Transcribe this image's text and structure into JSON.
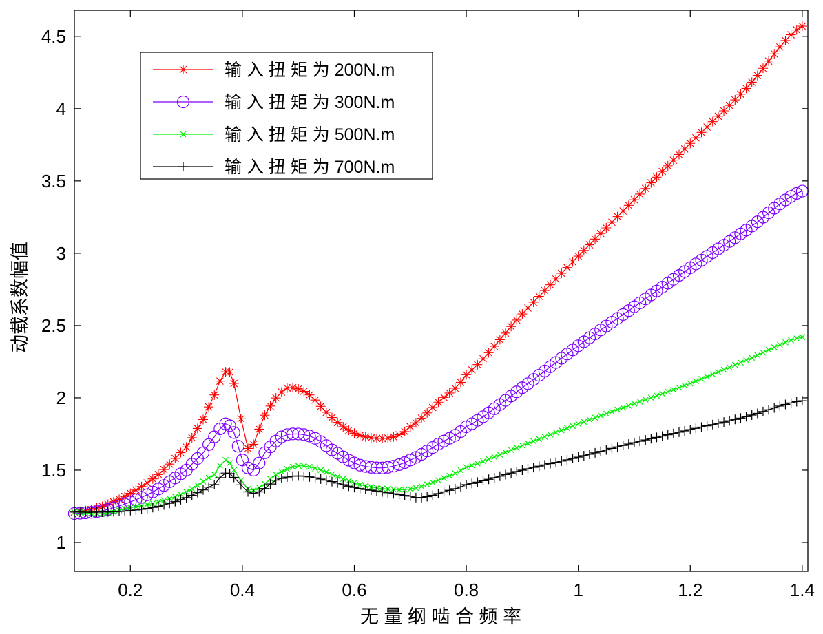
{
  "chart_data": {
    "type": "line",
    "title": "",
    "xlabel": "无 量 纲 啮 合 频 率",
    "ylabel": "动载系数幅值",
    "xlim": [
      0.1,
      1.41
    ],
    "ylim": [
      0.8,
      4.68
    ],
    "xticks": [
      0.2,
      0.4,
      0.6,
      0.8,
      1,
      1.2,
      1.4
    ],
    "xtick_labels": [
      "0.2",
      "0.4",
      "0.6",
      "0.8",
      "1",
      "1.2",
      "1.4"
    ],
    "yticks": [
      1,
      1.5,
      2,
      2.5,
      3,
      3.5,
      4,
      4.5
    ],
    "ytick_labels": [
      "1",
      "1.5",
      "2",
      "2.5",
      "3",
      "3.5",
      "4",
      "4.5"
    ],
    "grid": false,
    "legend_position": "top-left",
    "series": [
      {
        "name": "输 入 扭 矩 为 200N.m",
        "color": "#ff0000",
        "marker": "asterisk",
        "points": [
          [
            0.1,
            1.21
          ],
          [
            0.15,
            1.25
          ],
          [
            0.2,
            1.34
          ],
          [
            0.25,
            1.47
          ],
          [
            0.3,
            1.66
          ],
          [
            0.33,
            1.85
          ],
          [
            0.35,
            2.02
          ],
          [
            0.37,
            2.18
          ],
          [
            0.385,
            2.1
          ],
          [
            0.41,
            1.65
          ],
          [
            0.44,
            1.88
          ],
          [
            0.47,
            2.04
          ],
          [
            0.49,
            2.07
          ],
          [
            0.52,
            2.02
          ],
          [
            0.55,
            1.9
          ],
          [
            0.58,
            1.8
          ],
          [
            0.61,
            1.74
          ],
          [
            0.64,
            1.72
          ],
          [
            0.67,
            1.73
          ],
          [
            0.7,
            1.8
          ],
          [
            0.75,
            1.97
          ],
          [
            0.8,
            2.16
          ],
          [
            0.9,
            2.58
          ],
          [
            1.0,
            2.98
          ],
          [
            1.1,
            3.37
          ],
          [
            1.2,
            3.76
          ],
          [
            1.3,
            4.14
          ],
          [
            1.4,
            4.57
          ]
        ]
      },
      {
        "name": "输 入 扭 矩 为 300N.m",
        "color": "#7d00ff",
        "marker": "circle",
        "points": [
          [
            0.1,
            1.2
          ],
          [
            0.15,
            1.22
          ],
          [
            0.2,
            1.28
          ],
          [
            0.25,
            1.37
          ],
          [
            0.3,
            1.5
          ],
          [
            0.33,
            1.62
          ],
          [
            0.35,
            1.73
          ],
          [
            0.37,
            1.82
          ],
          [
            0.385,
            1.76
          ],
          [
            0.4,
            1.57
          ],
          [
            0.42,
            1.5
          ],
          [
            0.44,
            1.62
          ],
          [
            0.47,
            1.73
          ],
          [
            0.5,
            1.75
          ],
          [
            0.53,
            1.72
          ],
          [
            0.56,
            1.64
          ],
          [
            0.6,
            1.55
          ],
          [
            0.63,
            1.52
          ],
          [
            0.66,
            1.52
          ],
          [
            0.7,
            1.57
          ],
          [
            0.75,
            1.68
          ],
          [
            0.8,
            1.8
          ],
          [
            0.9,
            2.07
          ],
          [
            1.0,
            2.36
          ],
          [
            1.1,
            2.63
          ],
          [
            1.2,
            2.9
          ],
          [
            1.3,
            3.16
          ],
          [
            1.4,
            3.43
          ]
        ]
      },
      {
        "name": "输 入 扭 矩 为 500N.m",
        "color": "#00ee00",
        "marker": "x",
        "points": [
          [
            0.1,
            1.21
          ],
          [
            0.15,
            1.2
          ],
          [
            0.2,
            1.24
          ],
          [
            0.25,
            1.28
          ],
          [
            0.3,
            1.35
          ],
          [
            0.35,
            1.47
          ],
          [
            0.37,
            1.57
          ],
          [
            0.385,
            1.5
          ],
          [
            0.41,
            1.37
          ],
          [
            0.43,
            1.38
          ],
          [
            0.46,
            1.47
          ],
          [
            0.5,
            1.53
          ],
          [
            0.54,
            1.5
          ],
          [
            0.58,
            1.44
          ],
          [
            0.62,
            1.39
          ],
          [
            0.66,
            1.37
          ],
          [
            0.7,
            1.37
          ],
          [
            0.75,
            1.43
          ],
          [
            0.8,
            1.52
          ],
          [
            0.9,
            1.67
          ],
          [
            1.0,
            1.82
          ],
          [
            1.1,
            1.96
          ],
          [
            1.2,
            2.1
          ],
          [
            1.3,
            2.26
          ],
          [
            1.4,
            2.42
          ]
        ]
      },
      {
        "name": "输 入 扭 矩 为 700N.m",
        "color": "#000000",
        "marker": "plus",
        "points": [
          [
            0.1,
            1.21
          ],
          [
            0.15,
            1.21
          ],
          [
            0.2,
            1.22
          ],
          [
            0.25,
            1.25
          ],
          [
            0.3,
            1.31
          ],
          [
            0.35,
            1.4
          ],
          [
            0.37,
            1.48
          ],
          [
            0.385,
            1.45
          ],
          [
            0.41,
            1.35
          ],
          [
            0.43,
            1.35
          ],
          [
            0.46,
            1.43
          ],
          [
            0.5,
            1.46
          ],
          [
            0.55,
            1.43
          ],
          [
            0.6,
            1.38
          ],
          [
            0.65,
            1.35
          ],
          [
            0.7,
            1.32
          ],
          [
            0.72,
            1.31
          ],
          [
            0.76,
            1.35
          ],
          [
            0.8,
            1.4
          ],
          [
            0.9,
            1.5
          ],
          [
            1.0,
            1.59
          ],
          [
            1.1,
            1.69
          ],
          [
            1.2,
            1.78
          ],
          [
            1.3,
            1.87
          ],
          [
            1.4,
            1.98
          ]
        ]
      }
    ]
  }
}
